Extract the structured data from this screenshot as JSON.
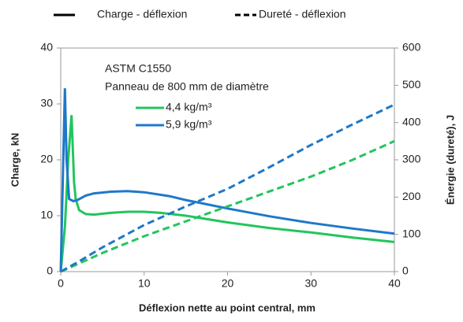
{
  "chart_data": {
    "type": "line",
    "line_styles": [
      {
        "label": "Charge - déflexion",
        "dash": false
      },
      {
        "label": "Dureté - déflexion",
        "dash": true
      }
    ],
    "annotations": [
      "ASTM C1550",
      "Panneau de 800 mm de diamètre"
    ],
    "x_label": "Déflexion nette au point central, mm",
    "y_label": "Charge, kN",
    "y2_label": "Énergie (dureté), J",
    "xlim": [
      0,
      40
    ],
    "xticks": [
      0,
      10,
      20,
      30,
      40
    ],
    "ylim": [
      0,
      40
    ],
    "yticks": [
      0,
      10,
      20,
      30,
      40
    ],
    "y2lim": [
      0,
      600
    ],
    "y2ticks": [
      0,
      100,
      200,
      300,
      400,
      500,
      600
    ],
    "series": [
      {
        "name": "4,4 kg/m³",
        "color": "#22c55e",
        "dash": false,
        "x": [
          0,
          0.5,
          0.9,
          1.3,
          1.6,
          1.8,
          2.2,
          3,
          4,
          6,
          8,
          10,
          12,
          15,
          20,
          25,
          30,
          35,
          40
        ],
        "values": [
          0,
          8,
          20,
          28,
          16,
          13,
          11,
          10.3,
          10.2,
          10.5,
          10.7,
          10.7,
          10.5,
          10,
          8.8,
          7.8,
          7,
          6.1,
          5.3
        ]
      },
      {
        "name": "5,9 kg/m³",
        "color": "#1f78c8",
        "dash": false,
        "x": [
          0,
          0.3,
          0.5,
          0.7,
          1,
          1.5,
          2,
          3,
          4,
          6,
          8,
          10,
          13,
          15,
          20,
          25,
          30,
          35,
          40
        ],
        "values": [
          0,
          20,
          32.8,
          20,
          13,
          12.6,
          12.8,
          13.6,
          14,
          14.3,
          14.4,
          14.2,
          13.5,
          12.8,
          11.3,
          9.9,
          8.7,
          7.7,
          6.8
        ]
      },
      {
        "color": "#22c55e",
        "dash": true,
        "axis": "y2",
        "x": [
          0,
          2,
          5,
          10,
          15,
          20,
          25,
          30,
          35,
          40
        ],
        "values": [
          0,
          20,
          50,
          95,
          135,
          175,
          215,
          255,
          300,
          350
        ]
      },
      {
        "color": "#1f78c8",
        "dash": true,
        "axis": "y2",
        "x": [
          0,
          2,
          5,
          10,
          15,
          20,
          25,
          30,
          35,
          40
        ],
        "values": [
          0,
          25,
          65,
          125,
          175,
          222,
          280,
          340,
          395,
          448
        ]
      }
    ]
  }
}
